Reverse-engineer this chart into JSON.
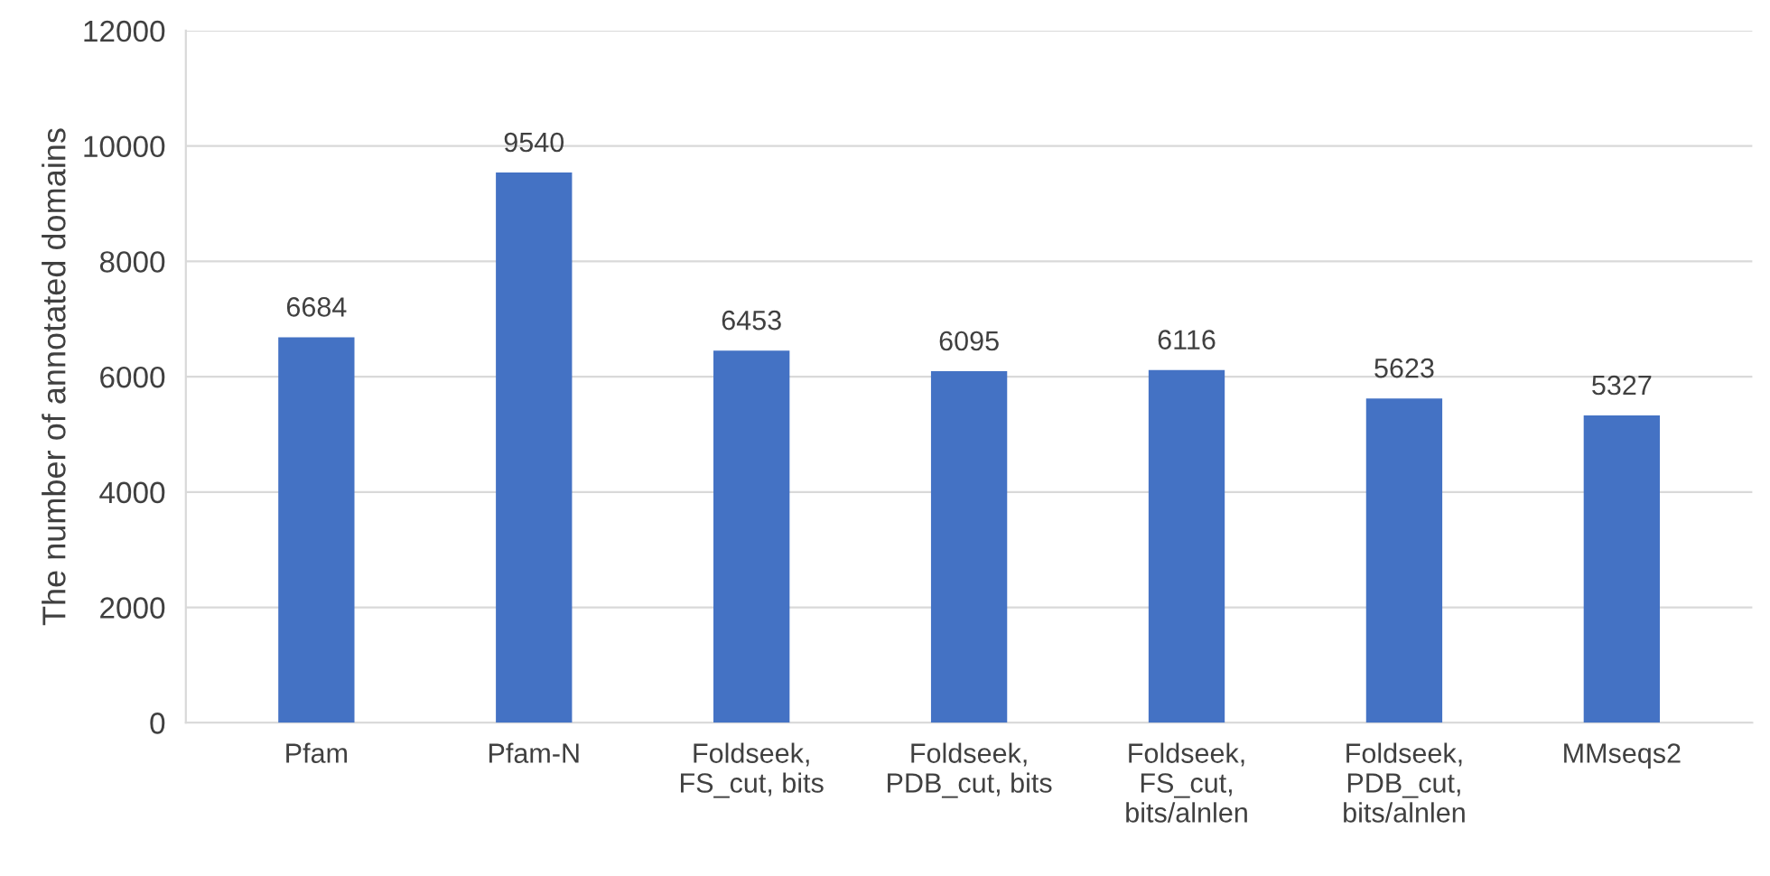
{
  "chart_data": {
    "type": "bar",
    "ylabel": "The number of annotated domains",
    "categories": [
      "Pfam",
      "Pfam-N",
      "Foldseek,\nFS_cut, bits",
      "Foldseek,\nPDB_cut, bits",
      "Foldseek,\nFS_cut,\nbits/alnlen",
      "Foldseek,\nPDB_cut,\nbits/alnlen",
      "MMseqs2"
    ],
    "values": [
      6684,
      9540,
      6453,
      6095,
      6116,
      5623,
      5327
    ],
    "color": "#4472c4",
    "ylim": [
      0,
      12000
    ],
    "yticks": [
      0,
      2000,
      4000,
      6000,
      8000,
      10000,
      12000
    ],
    "grid": "y",
    "data_labels": true
  }
}
